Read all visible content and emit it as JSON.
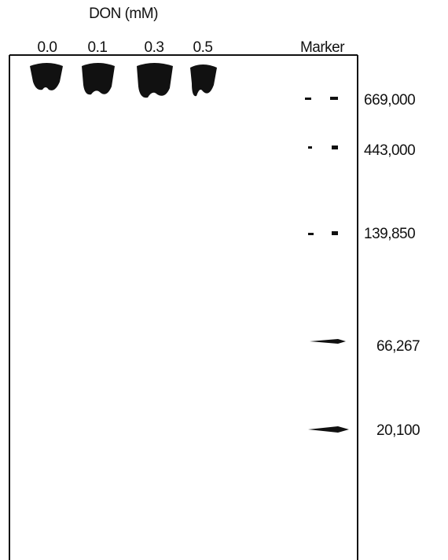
{
  "header": {
    "title": "DON (mM)"
  },
  "lanes": [
    "0.0",
    "0.1",
    "0.3",
    "0.5",
    "Marker"
  ],
  "markers": [
    "669,000",
    "443,000",
    "139,850",
    "66,267",
    "20,100"
  ]
}
